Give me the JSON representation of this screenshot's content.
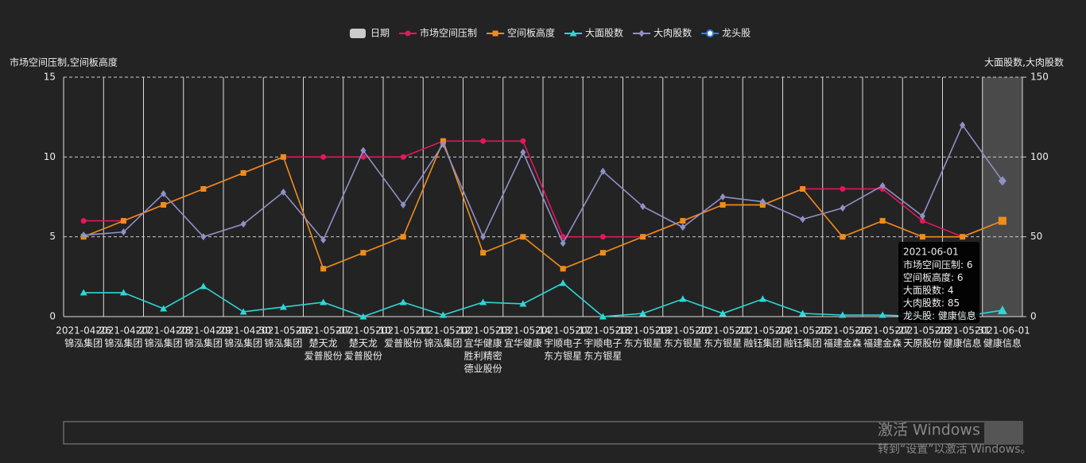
{
  "chart_data": {
    "type": "line",
    "y_axis_title": "市场空间压制,空间板高度",
    "y2_axis_title": "大面股数,大肉股数",
    "legend_extra": [
      {
        "name": "日期",
        "color": "#cccccc"
      },
      {
        "name": "龙头股",
        "color": "#2f80e0"
      }
    ],
    "categories": [
      [
        "2021-04-26",
        "锦泓集团"
      ],
      [
        "2021-04-27",
        "锦泓集团"
      ],
      [
        "2021-04-28",
        "锦泓集团"
      ],
      [
        "2021-04-29",
        "锦泓集团"
      ],
      [
        "2021-04-30",
        "锦泓集团"
      ],
      [
        "2021-05-06",
        "锦泓集团"
      ],
      [
        "2021-05-07",
        "楚天龙",
        "爱普股份"
      ],
      [
        "2021-05-10",
        "楚天龙",
        "爱普股份"
      ],
      [
        "2021-05-11",
        "爱普股份"
      ],
      [
        "2021-05-12",
        "锦泓集团"
      ],
      [
        "2021-05-13",
        "宜华健康",
        "胜利精密",
        "德业股份"
      ],
      [
        "2021-05-14",
        "宜华健康"
      ],
      [
        "2021-05-17",
        "宇顺电子",
        "东方银星"
      ],
      [
        "2021-05-18",
        "宇顺电子",
        "东方银星"
      ],
      [
        "2021-05-19",
        "东方银星"
      ],
      [
        "2021-05-20",
        "东方银星"
      ],
      [
        "2021-05-21",
        "东方银星"
      ],
      [
        "2021-05-24",
        "融钰集团"
      ],
      [
        "2021-05-25",
        "融钰集团"
      ],
      [
        "2021-05-26",
        "福建金森"
      ],
      [
        "2021-05-27",
        "福建金森"
      ],
      [
        "2021-05-28",
        "天原股份"
      ],
      [
        "2021-05-31",
        "健康信息"
      ],
      [
        "2021-06-01",
        "健康信息"
      ]
    ],
    "series": [
      {
        "name": "市场空间压制",
        "color": "#e0195a",
        "marker": "circle",
        "axis": "y",
        "values": [
          6,
          6,
          7,
          8,
          9,
          10,
          10,
          10,
          10,
          11,
          11,
          11,
          5,
          5,
          5,
          6,
          7,
          7,
          8,
          8,
          8,
          6,
          5,
          6
        ]
      },
      {
        "name": "空间板高度",
        "color": "#f08c1a",
        "marker": "square",
        "axis": "y",
        "values": [
          5,
          6,
          7,
          8,
          9,
          10,
          3,
          4,
          5,
          11,
          4,
          5,
          3,
          4,
          5,
          6,
          7,
          7,
          8,
          5,
          6,
          5,
          5,
          6
        ]
      },
      {
        "name": "大面股数",
        "color": "#2fd6d6",
        "marker": "triangle",
        "axis": "y2",
        "values": [
          15,
          15,
          5,
          19,
          3,
          6,
          9,
          0,
          9,
          1,
          9,
          8,
          21,
          0,
          2,
          11,
          2,
          11,
          2,
          1,
          1,
          0,
          0,
          4
        ]
      },
      {
        "name": "大肉股数",
        "color": "#9090c8",
        "marker": "diamond",
        "axis": "y2",
        "values": [
          51,
          53,
          77,
          50,
          58,
          78,
          48,
          104,
          70,
          108,
          50,
          103,
          46,
          91,
          69,
          56,
          75,
          72,
          61,
          68,
          82,
          63,
          120,
          85
        ]
      }
    ],
    "ylim": [
      0,
      15
    ],
    "yticks": [
      0,
      5,
      10,
      15
    ],
    "y2lim": [
      0,
      150
    ],
    "y2ticks": [
      0,
      50,
      100,
      150
    ],
    "grid": true,
    "watermark": [
      "激活 Windows",
      "转到“设置”以激活 Windows。"
    ]
  }
}
